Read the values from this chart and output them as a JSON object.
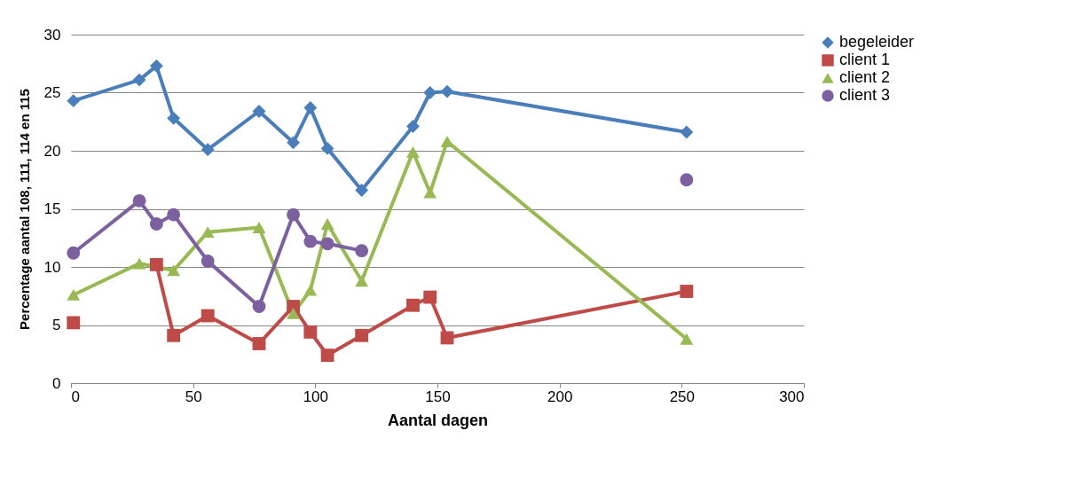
{
  "chart_data": {
    "type": "line",
    "xlabel": "Aantal dagen",
    "ylabel": "Percentage aantal 108, 111, 114 en 115",
    "x": [
      1,
      28,
      35,
      42,
      56,
      77,
      91,
      98,
      105,
      119,
      140,
      147,
      154,
      252
    ],
    "series": [
      {
        "name": "begeleider",
        "color": "#4a7ebb",
        "marker": "diamond",
        "values": [
          24.3,
          26.1,
          27.3,
          22.8,
          20.1,
          23.4,
          20.7,
          23.7,
          20.2,
          16.6,
          22.1,
          25.0,
          25.1,
          21.6
        ]
      },
      {
        "name": "client 1",
        "color": "#be4b48",
        "marker": "square",
        "values": [
          5.2,
          null,
          10.2,
          4.1,
          5.8,
          3.4,
          6.6,
          4.4,
          2.4,
          4.1,
          6.7,
          7.4,
          3.9,
          7.9
        ]
      },
      {
        "name": "client 2",
        "color": "#98b954",
        "marker": "triangle",
        "x": [
          1,
          28,
          42,
          56,
          77,
          91,
          98,
          105,
          119,
          140,
          147,
          154,
          252
        ],
        "values": [
          7.6,
          10.3,
          9.7,
          13.0,
          13.4,
          6.0,
          8.0,
          13.7,
          8.8,
          19.9,
          16.4,
          20.8,
          3.8
        ]
      },
      {
        "name": "client 3",
        "color": "#7d60a0",
        "marker": "circle",
        "values": [
          11.2,
          15.7,
          13.7,
          14.5,
          10.5,
          6.6,
          14.5,
          12.2,
          12.0,
          11.4,
          null,
          null,
          null,
          17.5
        ]
      }
    ],
    "xlim": [
      0,
      300
    ],
    "xticks": [
      0,
      50,
      100,
      150,
      200,
      250,
      300
    ],
    "ylim": [
      0,
      30
    ],
    "yticks": [
      0,
      5,
      10,
      15,
      20,
      25,
      30
    ],
    "grid": "y",
    "legend": "right",
    "line_style": "solid"
  }
}
